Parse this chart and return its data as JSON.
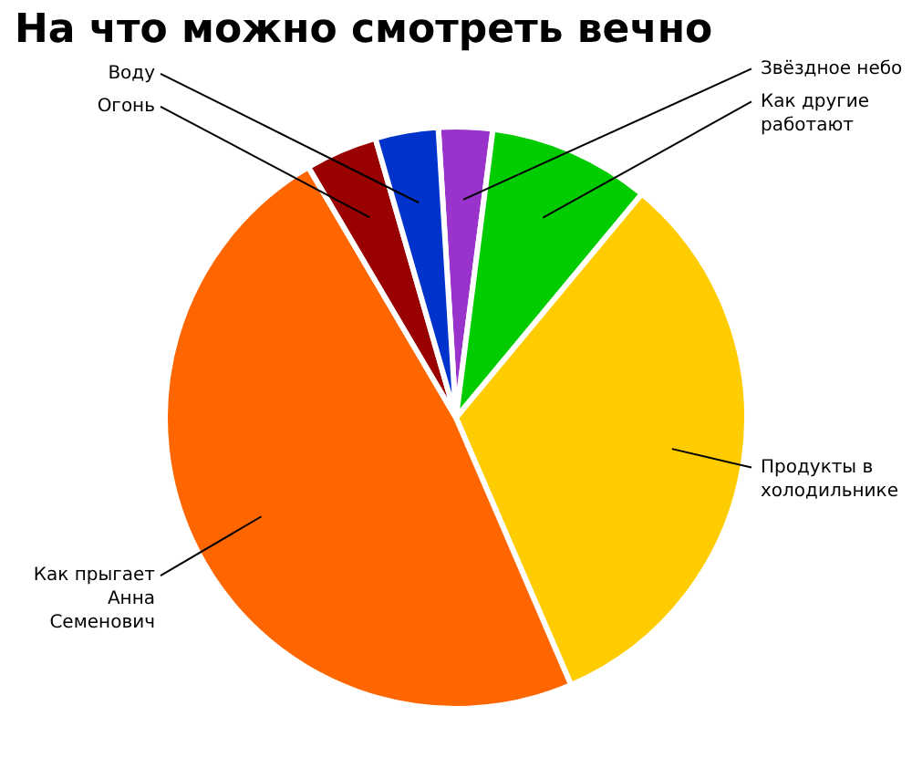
{
  "chart_data": {
    "type": "pie",
    "title": "На что можно смотреть вечно",
    "categories": [
      "Звёздное небо",
      "Как другие работают",
      "Продукты в холодильнике",
      "Как прыгает Анна Семенович",
      "Огонь",
      "Воду"
    ],
    "values": [
      3,
      9,
      32.5,
      48,
      4,
      3.5
    ],
    "colors": [
      "#9933cc",
      "#00cc00",
      "#ffcc00",
      "#ff6600",
      "#990000",
      "#0033cc"
    ],
    "legend": false
  }
}
